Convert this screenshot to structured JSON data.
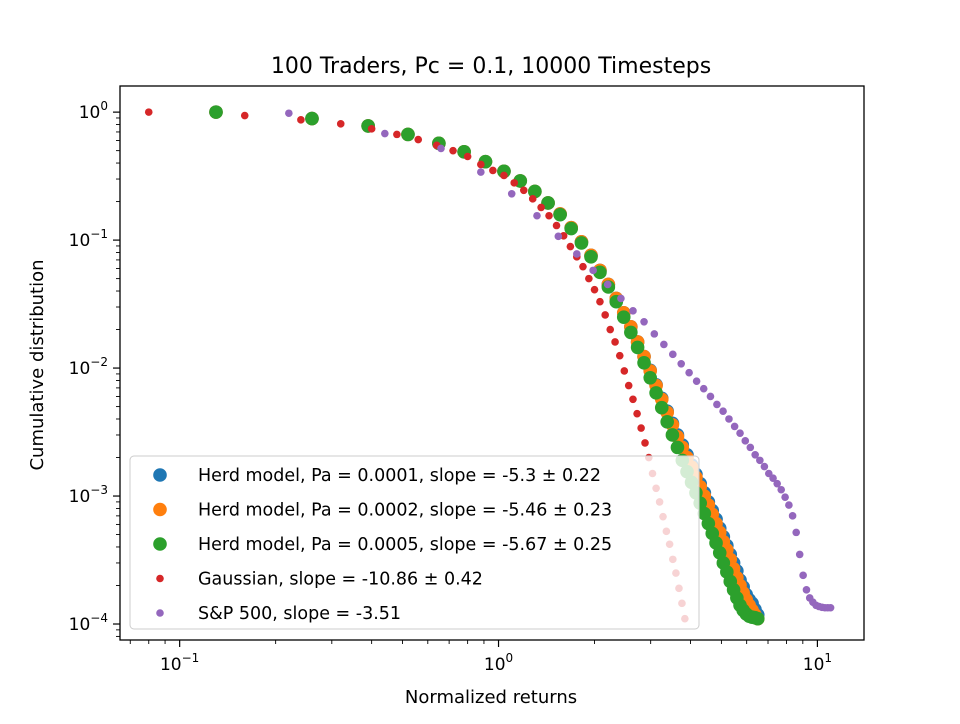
{
  "chart_data": {
    "type": "scatter",
    "title": "100 Traders, Pc = 0.1, 10000 Timesteps",
    "xlabel": "Normalized returns",
    "ylabel": "Cumulative distribution",
    "xscale": "log",
    "yscale": "log",
    "xlim": [
      0.065,
      14
    ],
    "ylim": [
      7.5e-05,
      1.6
    ],
    "grid": false,
    "legend_position": "lower-left",
    "x_ticks": [
      {
        "value": 0.1,
        "base": "10",
        "exp": "−1"
      },
      {
        "value": 1,
        "base": "10",
        "exp": "0"
      },
      {
        "value": 10,
        "base": "10",
        "exp": "1"
      }
    ],
    "y_ticks": [
      {
        "value": 0.0001,
        "base": "10",
        "exp": "−4"
      },
      {
        "value": 0.001,
        "base": "10",
        "exp": "−3"
      },
      {
        "value": 0.01,
        "base": "10",
        "exp": "−2"
      },
      {
        "value": 0.1,
        "base": "10",
        "exp": "−1"
      },
      {
        "value": 1,
        "base": "10",
        "exp": "0"
      }
    ],
    "series": [
      {
        "name": "Herd model, Pa = 0.0001, slope = -5.3 ± 0.22",
        "color": "#1f77b4",
        "marker_size": "large",
        "points": [
          [
            0.13,
            1.0
          ],
          [
            0.26,
            0.89
          ],
          [
            0.39,
            0.78
          ],
          [
            0.52,
            0.67
          ],
          [
            0.65,
            0.57
          ],
          [
            0.78,
            0.49
          ],
          [
            0.91,
            0.41
          ],
          [
            1.04,
            0.345
          ],
          [
            1.17,
            0.29
          ],
          [
            1.3,
            0.24
          ],
          [
            1.43,
            0.195
          ],
          [
            1.56,
            0.16
          ],
          [
            1.69,
            0.125
          ],
          [
            1.82,
            0.097
          ],
          [
            1.95,
            0.076
          ],
          [
            2.08,
            0.058
          ],
          [
            2.21,
            0.045
          ],
          [
            2.34,
            0.035
          ],
          [
            2.47,
            0.027
          ],
          [
            2.6,
            0.021
          ],
          [
            2.73,
            0.016
          ],
          [
            2.86,
            0.0123
          ],
          [
            2.99,
            0.0096
          ],
          [
            3.12,
            0.0074
          ],
          [
            3.25,
            0.0058
          ],
          [
            3.38,
            0.0046
          ],
          [
            3.51,
            0.0037
          ],
          [
            3.64,
            0.003
          ],
          [
            3.77,
            0.0025
          ],
          [
            3.9,
            0.0021
          ],
          [
            4.03,
            0.00175
          ],
          [
            4.16,
            0.00148
          ],
          [
            4.29,
            0.00125
          ],
          [
            4.42,
            0.00106
          ],
          [
            4.55,
            0.0009
          ],
          [
            4.68,
            0.00077
          ],
          [
            4.81,
            0.00066
          ],
          [
            4.94,
            0.00056
          ],
          [
            5.07,
            0.00048
          ],
          [
            5.2,
            0.00041
          ],
          [
            5.33,
            0.00035
          ],
          [
            5.46,
            0.0003
          ],
          [
            5.59,
            0.00026
          ],
          [
            5.72,
            0.00022
          ],
          [
            5.85,
            0.000195
          ],
          [
            5.98,
            0.00017
          ],
          [
            6.11,
            0.000155
          ],
          [
            6.24,
            0.000145
          ],
          [
            6.37,
            0.00013
          ],
          [
            6.5,
            0.000118
          ]
        ]
      },
      {
        "name": "Herd model, Pa = 0.0002, slope = -5.46 ± 0.23",
        "color": "#ff7f0e",
        "marker_size": "large",
        "points": [
          [
            0.13,
            1.0
          ],
          [
            0.26,
            0.89
          ],
          [
            0.39,
            0.78
          ],
          [
            0.52,
            0.67
          ],
          [
            0.65,
            0.57
          ],
          [
            0.78,
            0.49
          ],
          [
            0.91,
            0.41
          ],
          [
            1.04,
            0.345
          ],
          [
            1.17,
            0.29
          ],
          [
            1.3,
            0.24
          ],
          [
            1.43,
            0.195
          ],
          [
            1.56,
            0.16
          ],
          [
            1.69,
            0.125
          ],
          [
            1.82,
            0.097
          ],
          [
            1.95,
            0.076
          ],
          [
            2.08,
            0.058
          ],
          [
            2.21,
            0.045
          ],
          [
            2.34,
            0.035
          ],
          [
            2.47,
            0.027
          ],
          [
            2.6,
            0.021
          ],
          [
            2.73,
            0.016
          ],
          [
            2.86,
            0.0123
          ],
          [
            2.99,
            0.0095
          ],
          [
            3.12,
            0.0073
          ],
          [
            3.25,
            0.0057
          ],
          [
            3.38,
            0.0045
          ],
          [
            3.51,
            0.0036
          ],
          [
            3.64,
            0.0029
          ],
          [
            3.77,
            0.0024
          ],
          [
            3.9,
            0.002
          ],
          [
            4.03,
            0.00168
          ],
          [
            4.16,
            0.0014
          ],
          [
            4.29,
            0.00118
          ],
          [
            4.42,
            0.001
          ],
          [
            4.55,
            0.00085
          ],
          [
            4.68,
            0.00072
          ],
          [
            4.81,
            0.00061
          ],
          [
            4.94,
            0.00052
          ],
          [
            5.07,
            0.00044
          ],
          [
            5.2,
            0.00038
          ],
          [
            5.33,
            0.00032
          ],
          [
            5.46,
            0.00027
          ],
          [
            5.59,
            0.00023
          ],
          [
            5.72,
            0.0002
          ],
          [
            5.85,
            0.000175
          ],
          [
            5.98,
            0.000155
          ],
          [
            6.11,
            0.00014
          ],
          [
            6.24,
            0.000128
          ],
          [
            6.37,
            0.000118
          ],
          [
            6.5,
            0.00011
          ]
        ]
      },
      {
        "name": "Herd model, Pa = 0.0005, slope = -5.67 ± 0.25",
        "color": "#2ca02c",
        "marker_size": "large",
        "points": [
          [
            0.13,
            1.0
          ],
          [
            0.26,
            0.89
          ],
          [
            0.39,
            0.78
          ],
          [
            0.52,
            0.67
          ],
          [
            0.65,
            0.57
          ],
          [
            0.78,
            0.49
          ],
          [
            0.91,
            0.41
          ],
          [
            1.04,
            0.345
          ],
          [
            1.17,
            0.29
          ],
          [
            1.3,
            0.24
          ],
          [
            1.43,
            0.195
          ],
          [
            1.56,
            0.158
          ],
          [
            1.69,
            0.123
          ],
          [
            1.82,
            0.095
          ],
          [
            1.95,
            0.074
          ],
          [
            2.08,
            0.056
          ],
          [
            2.21,
            0.043
          ],
          [
            2.34,
            0.033
          ],
          [
            2.47,
            0.025
          ],
          [
            2.6,
            0.019
          ],
          [
            2.73,
            0.0145
          ],
          [
            2.86,
            0.011
          ],
          [
            2.99,
            0.0084
          ],
          [
            3.12,
            0.0064
          ],
          [
            3.25,
            0.0049
          ],
          [
            3.38,
            0.0038
          ],
          [
            3.51,
            0.003
          ],
          [
            3.64,
            0.0024
          ],
          [
            3.77,
            0.0019
          ],
          [
            3.9,
            0.00155
          ],
          [
            4.03,
            0.00128
          ],
          [
            4.16,
            0.00106
          ],
          [
            4.29,
            0.00088
          ],
          [
            4.42,
            0.00073
          ],
          [
            4.55,
            0.00061
          ],
          [
            4.68,
            0.00051
          ],
          [
            4.81,
            0.00043
          ],
          [
            4.94,
            0.00036
          ],
          [
            5.07,
            0.0003
          ],
          [
            5.2,
            0.000255
          ],
          [
            5.33,
            0.000215
          ],
          [
            5.46,
            0.000185
          ],
          [
            5.59,
            0.00016
          ],
          [
            5.72,
            0.00014
          ],
          [
            5.85,
            0.000128
          ],
          [
            5.98,
            0.00012
          ],
          [
            6.11,
            0.000115
          ],
          [
            6.24,
            0.000113
          ],
          [
            6.37,
            0.000112
          ],
          [
            6.5,
            0.00011
          ]
        ]
      },
      {
        "name": "Gaussian, slope = -10.86 ± 0.42",
        "color": "#d62728",
        "marker_size": "small",
        "points": [
          [
            0.08,
            1.0
          ],
          [
            0.16,
            0.94
          ],
          [
            0.24,
            0.87
          ],
          [
            0.32,
            0.81
          ],
          [
            0.4,
            0.74
          ],
          [
            0.48,
            0.67
          ],
          [
            0.56,
            0.61
          ],
          [
            0.64,
            0.55
          ],
          [
            0.72,
            0.5
          ],
          [
            0.8,
            0.45
          ],
          [
            0.88,
            0.39
          ],
          [
            0.96,
            0.35
          ],
          [
            1.04,
            0.32
          ],
          [
            1.12,
            0.28
          ],
          [
            1.2,
            0.245
          ],
          [
            1.28,
            0.21
          ],
          [
            1.36,
            0.18
          ],
          [
            1.44,
            0.155
          ],
          [
            1.52,
            0.13
          ],
          [
            1.6,
            0.108
          ],
          [
            1.68,
            0.089
          ],
          [
            1.76,
            0.074
          ],
          [
            1.84,
            0.062
          ],
          [
            1.92,
            0.05
          ],
          [
            2.0,
            0.041
          ],
          [
            2.08,
            0.033
          ],
          [
            2.16,
            0.026
          ],
          [
            2.24,
            0.02
          ],
          [
            2.32,
            0.016
          ],
          [
            2.4,
            0.0125
          ],
          [
            2.48,
            0.0095
          ],
          [
            2.56,
            0.0073
          ],
          [
            2.64,
            0.0057
          ],
          [
            2.72,
            0.0044
          ],
          [
            2.8,
            0.0034
          ],
          [
            2.88,
            0.0026
          ],
          [
            2.96,
            0.002
          ],
          [
            3.04,
            0.0015
          ],
          [
            3.12,
            0.00115
          ],
          [
            3.2,
            0.0009
          ],
          [
            3.28,
            0.00069
          ],
          [
            3.36,
            0.00053
          ],
          [
            3.44,
            0.00042
          ],
          [
            3.52,
            0.00032
          ],
          [
            3.6,
            0.00025
          ],
          [
            3.68,
            0.00019
          ],
          [
            3.76,
            0.000145
          ],
          [
            3.84,
            0.00011
          ]
        ]
      },
      {
        "name": "S&P 500, slope = -3.51",
        "color": "#9467bd",
        "marker_size": "small",
        "points": [
          [
            0.22,
            0.98
          ],
          [
            0.44,
            0.68
          ],
          [
            0.66,
            0.52
          ],
          [
            0.88,
            0.34
          ],
          [
            1.1,
            0.23
          ],
          [
            1.32,
            0.155
          ],
          [
            1.54,
            0.107
          ],
          [
            1.76,
            0.078
          ],
          [
            1.98,
            0.058
          ],
          [
            2.2,
            0.045
          ],
          [
            2.42,
            0.035
          ],
          [
            2.64,
            0.028
          ],
          [
            2.86,
            0.023
          ],
          [
            3.08,
            0.0185
          ],
          [
            3.3,
            0.0153
          ],
          [
            3.52,
            0.0128
          ],
          [
            3.74,
            0.0108
          ],
          [
            3.96,
            0.0092
          ],
          [
            4.18,
            0.0079
          ],
          [
            4.4,
            0.0069
          ],
          [
            4.62,
            0.006
          ],
          [
            4.84,
            0.0052
          ],
          [
            5.06,
            0.0046
          ],
          [
            5.28,
            0.004
          ],
          [
            5.5,
            0.0035
          ],
          [
            5.72,
            0.0031
          ],
          [
            5.94,
            0.0027
          ],
          [
            6.16,
            0.0024
          ],
          [
            6.38,
            0.0021
          ],
          [
            6.6,
            0.0019
          ],
          [
            6.82,
            0.0017
          ],
          [
            7.04,
            0.0015
          ],
          [
            7.26,
            0.00138
          ],
          [
            7.48,
            0.00125
          ],
          [
            7.7,
            0.00112
          ],
          [
            7.92,
            0.00098
          ],
          [
            8.14,
            0.00085
          ],
          [
            8.36,
            0.0007
          ],
          [
            8.58,
            0.00052
          ],
          [
            8.8,
            0.00035
          ],
          [
            9.02,
            0.00024
          ],
          [
            9.24,
            0.000185
          ],
          [
            9.46,
            0.00016
          ],
          [
            9.68,
            0.000148
          ],
          [
            9.9,
            0.00014
          ],
          [
            10.12,
            0.000137
          ],
          [
            10.34,
            0.000135
          ],
          [
            10.56,
            0.000134
          ],
          [
            10.78,
            0.000134
          ],
          [
            11.0,
            0.000134
          ]
        ]
      }
    ]
  }
}
